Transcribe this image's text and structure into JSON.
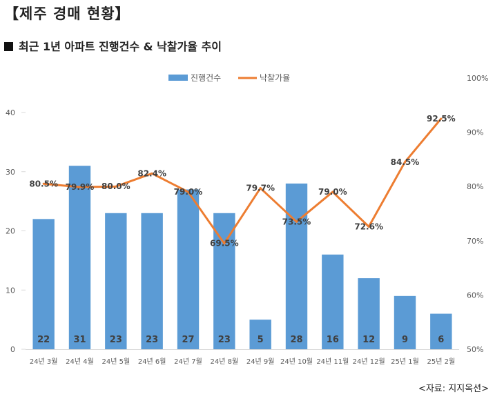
{
  "page": {
    "title": "【제주 경매 현황】",
    "subtitle": "최근 1년 아파트 진행건수 & 낙찰가율 추이",
    "source": "<자료: 지지옥션>"
  },
  "chart_data": {
    "type": "bar",
    "categories": [
      "24년 3월",
      "24년 4월",
      "24년 5월",
      "24년 6월",
      "24년 7월",
      "24년 8월",
      "24년 9월",
      "24년 10월",
      "24년 11월",
      "24년 12월",
      "25년 1월",
      "25년 2월"
    ],
    "series": [
      {
        "name": "진행건수",
        "type": "bar",
        "axis": "left",
        "color": "#5b9bd5",
        "values": [
          22,
          31,
          23,
          23,
          27,
          23,
          5,
          28,
          16,
          12,
          9,
          6
        ],
        "labels": [
          "22",
          "31",
          "23",
          "23",
          "27",
          "23",
          "5",
          "28",
          "16",
          "12",
          "9",
          "6"
        ]
      },
      {
        "name": "낙찰가율",
        "type": "line",
        "axis": "right",
        "color": "#ed7d31",
        "values": [
          80.5,
          79.9,
          80.0,
          82.4,
          79.0,
          69.5,
          79.7,
          73.5,
          79.0,
          72.6,
          84.5,
          92.5
        ],
        "labels": [
          "80.5%",
          "79.9%",
          "80.0%",
          "82.4%",
          "79.0%",
          "69.5%",
          "79.7%",
          "73.5%",
          "79.0%",
          "72.6%",
          "84.5%",
          "92.5%"
        ]
      }
    ],
    "y_left": {
      "min": 0,
      "max": 40,
      "ticks": [
        0,
        10,
        20,
        30,
        40
      ],
      "tick_labels": [
        "0",
        "10",
        "20",
        "30",
        "40"
      ]
    },
    "y_right": {
      "min": 50,
      "max": 100,
      "ticks": [
        50,
        60,
        70,
        80,
        90,
        100
      ],
      "tick_labels": [
        "50%",
        "60%",
        "70%",
        "80%",
        "90%",
        "100%"
      ]
    },
    "grid": false,
    "legend_position": "top"
  }
}
